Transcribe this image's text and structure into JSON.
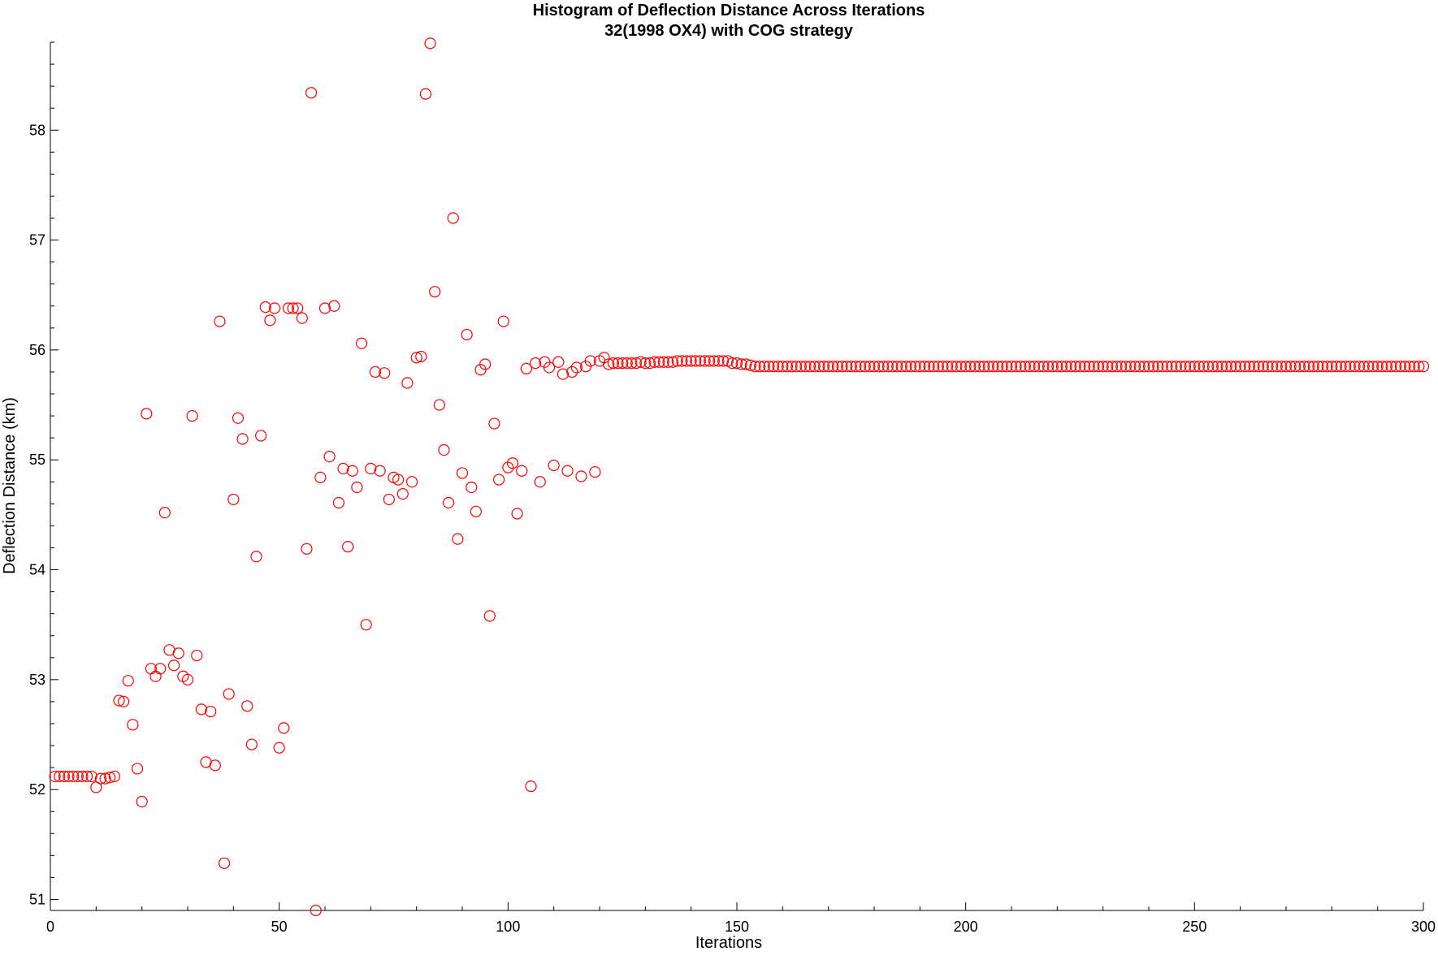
{
  "chart_data": {
    "type": "scatter",
    "title": "Histogram of Deflection Distance Across Iterations",
    "subtitle": "32(1998 OX4) with COG strategy",
    "xlabel": "Iterations",
    "ylabel": "Deflection Distance (km)",
    "xlim": [
      0,
      300
    ],
    "ylim": [
      50.9,
      58.8
    ],
    "xticks": [
      0,
      50,
      100,
      150,
      200,
      250,
      300
    ],
    "yticks": [
      51,
      52,
      53,
      54,
      55,
      56,
      57,
      58
    ],
    "grid": false,
    "legend": "none",
    "marker_color": "#ff0000",
    "marker": "open-circle",
    "series": [
      {
        "y_tail_from_x": 155,
        "y_tail_value": 55.85,
        "x": [
          1,
          2,
          3,
          4,
          5,
          6,
          7,
          8,
          9,
          10,
          11,
          12,
          13,
          14,
          15,
          16,
          17,
          18,
          19,
          20,
          21,
          22,
          23,
          24,
          25,
          26,
          27,
          28,
          29,
          30,
          31,
          32,
          33,
          34,
          35,
          36,
          37,
          38,
          39,
          40,
          41,
          42,
          43,
          44,
          45,
          46,
          47,
          48,
          49,
          50,
          51,
          52,
          53,
          54,
          55,
          56,
          57,
          58,
          59,
          60,
          61,
          62,
          63,
          64,
          65,
          66,
          67,
          68,
          69,
          70,
          71,
          72,
          73,
          74,
          75,
          76,
          77,
          78,
          79,
          80,
          81,
          82,
          83,
          84,
          85,
          86,
          87,
          88,
          89,
          90,
          91,
          92,
          93,
          94,
          95,
          96,
          97,
          98,
          99,
          100,
          101,
          102,
          103,
          104,
          105,
          106,
          107,
          108,
          109,
          110,
          111,
          112,
          113,
          114,
          115,
          116,
          117,
          118,
          119,
          120,
          121,
          122,
          123,
          124,
          125,
          126,
          127,
          128,
          129,
          130,
          131,
          132,
          133,
          134,
          135,
          136,
          137,
          138,
          139,
          140,
          141,
          142,
          143,
          144,
          145,
          146,
          147,
          148,
          149,
          150,
          151,
          152,
          153,
          154
        ],
        "y": [
          52.12,
          52.12,
          52.12,
          52.12,
          52.12,
          52.12,
          52.12,
          52.12,
          52.12,
          52.02,
          52.1,
          52.1,
          52.11,
          52.12,
          52.81,
          52.8,
          52.99,
          52.59,
          52.19,
          51.89,
          55.42,
          53.1,
          53.03,
          53.1,
          54.52,
          53.27,
          53.13,
          53.24,
          53.03,
          53.0,
          55.4,
          53.22,
          52.73,
          52.25,
          52.71,
          52.22,
          56.26,
          51.33,
          52.87,
          54.64,
          55.38,
          55.19,
          52.76,
          52.41,
          54.12,
          55.22,
          56.39,
          56.27,
          56.38,
          52.38,
          52.56,
          56.38,
          56.38,
          56.38,
          56.29,
          54.19,
          58.34,
          50.9,
          54.84,
          56.38,
          55.03,
          56.4,
          54.61,
          54.92,
          54.21,
          54.9,
          54.75,
          56.06,
          53.5,
          54.92,
          55.8,
          54.9,
          55.79,
          54.64,
          54.84,
          54.82,
          54.69,
          55.7,
          54.8,
          55.93,
          55.94,
          58.33,
          58.79,
          56.53,
          55.5,
          55.09,
          54.61,
          57.2,
          54.28,
          54.88,
          56.14,
          54.75,
          54.53,
          55.82,
          55.87,
          53.58,
          55.33,
          54.82,
          56.26,
          54.93,
          54.97,
          54.51,
          54.9,
          55.83,
          52.03,
          55.88,
          54.8,
          55.89,
          55.84,
          54.95,
          55.89,
          55.78,
          54.9,
          55.8,
          55.84,
          54.85,
          55.85,
          55.9,
          54.89,
          55.9,
          55.93,
          55.87,
          55.88,
          55.88,
          55.88,
          55.88,
          55.88,
          55.88,
          55.89,
          55.88,
          55.88,
          55.89,
          55.89,
          55.89,
          55.89,
          55.89,
          55.9,
          55.9,
          55.9,
          55.9,
          55.9,
          55.9,
          55.9,
          55.9,
          55.9,
          55.9,
          55.9,
          55.9,
          55.88,
          55.88,
          55.87,
          55.87,
          55.86,
          55.85
        ]
      }
    ]
  }
}
